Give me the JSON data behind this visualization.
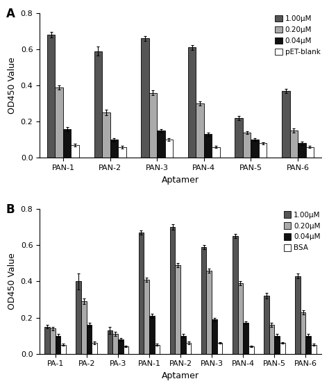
{
  "panel_A": {
    "categories": [
      "PAN-1",
      "PAN-2",
      "PAN-3",
      "PAN-4",
      "PAN-5",
      "PAN-6"
    ],
    "series": {
      "1.00uM": [
        0.68,
        0.59,
        0.66,
        0.61,
        0.22,
        0.37
      ],
      "0.20uM": [
        0.39,
        0.25,
        0.36,
        0.3,
        0.14,
        0.15
      ],
      "0.04uM": [
        0.16,
        0.1,
        0.15,
        0.13,
        0.1,
        0.08
      ],
      "pET-blank": [
        0.07,
        0.06,
        0.1,
        0.06,
        0.08,
        0.06
      ]
    },
    "errors": {
      "1.00uM": [
        0.015,
        0.025,
        0.012,
        0.015,
        0.012,
        0.012
      ],
      "0.20uM": [
        0.012,
        0.015,
        0.012,
        0.012,
        0.008,
        0.012
      ],
      "0.04uM": [
        0.012,
        0.01,
        0.01,
        0.008,
        0.008,
        0.008
      ],
      "pET-blank": [
        0.008,
        0.008,
        0.008,
        0.006,
        0.006,
        0.005
      ]
    },
    "ylabel": "OD450 Value",
    "xlabel": "Aptamer",
    "ylim": [
      0,
      0.8
    ],
    "yticks": [
      0.0,
      0.2,
      0.4,
      0.6,
      0.8
    ],
    "panel_label": "A"
  },
  "panel_B": {
    "categories": [
      "PA-1",
      "PA-2",
      "PA-3",
      "PAN-1",
      "PAN-2",
      "PAN-3",
      "PAN-4",
      "PAN-5",
      "PAN-6"
    ],
    "series": {
      "1.00uM": [
        0.15,
        0.4,
        0.13,
        0.67,
        0.7,
        0.59,
        0.65,
        0.32,
        0.43
      ],
      "0.20uM": [
        0.14,
        0.29,
        0.11,
        0.41,
        0.49,
        0.46,
        0.39,
        0.16,
        0.23
      ],
      "0.04uM": [
        0.1,
        0.16,
        0.08,
        0.21,
        0.1,
        0.19,
        0.17,
        0.1,
        0.1
      ],
      "BSA": [
        0.05,
        0.06,
        0.04,
        0.05,
        0.06,
        0.06,
        0.04,
        0.06,
        0.05
      ]
    },
    "errors": {
      "1.00uM": [
        0.01,
        0.045,
        0.02,
        0.012,
        0.015,
        0.012,
        0.012,
        0.015,
        0.012
      ],
      "0.20uM": [
        0.01,
        0.015,
        0.01,
        0.012,
        0.012,
        0.012,
        0.012,
        0.01,
        0.012
      ],
      "0.04uM": [
        0.008,
        0.01,
        0.008,
        0.01,
        0.008,
        0.01,
        0.008,
        0.008,
        0.008
      ],
      "BSA": [
        0.006,
        0.006,
        0.005,
        0.005,
        0.006,
        0.005,
        0.005,
        0.005,
        0.005
      ]
    },
    "ylabel": "OD450 Value",
    "xlabel": "Aptamer",
    "ylim": [
      0,
      0.8
    ],
    "yticks": [
      0.0,
      0.2,
      0.4,
      0.6,
      0.8
    ],
    "panel_label": "B"
  },
  "colors": {
    "1.00uM": "#555555",
    "0.20uM": "#aaaaaa",
    "0.04uM": "#111111",
    "control": "#ffffff"
  },
  "bar_width": 0.17,
  "legend_labels_A": [
    "1.00μM",
    "0.20μM",
    "0.04μM",
    "pET-blank"
  ],
  "legend_labels_B": [
    "1.00μM",
    "0.20μM",
    "0.04μM",
    "BSA"
  ],
  "edgecolor": "#000000",
  "figsize": [
    4.74,
    5.59
  ],
  "dpi": 100
}
